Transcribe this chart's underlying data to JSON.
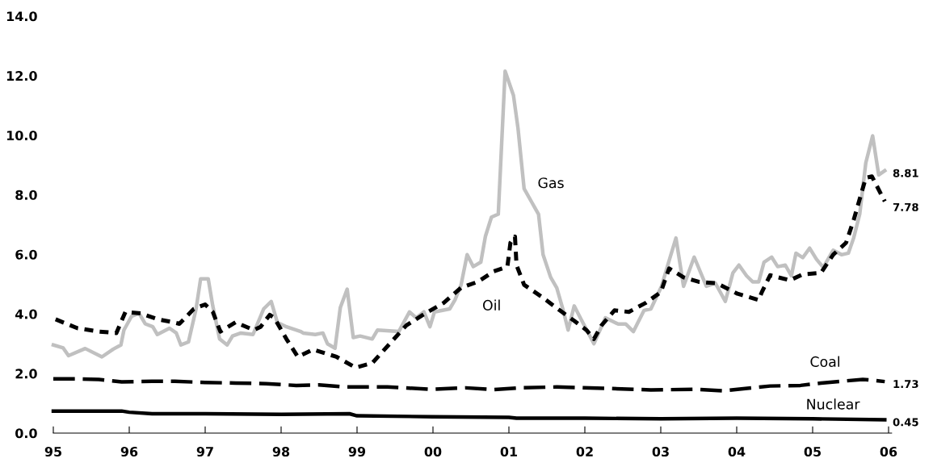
{
  "chart_data": {
    "type": "line",
    "xlim": [
      1995,
      2006
    ],
    "xticks": [
      {
        "value": 1995,
        "label": "95"
      },
      {
        "value": 1996,
        "label": "96"
      },
      {
        "value": 1997,
        "label": "97"
      },
      {
        "value": 1998,
        "label": "98"
      },
      {
        "value": 1999,
        "label": "99"
      },
      {
        "value": 2000,
        "label": "00"
      },
      {
        "value": 2001,
        "label": "01"
      },
      {
        "value": 2002,
        "label": "02"
      },
      {
        "value": 2003,
        "label": "03"
      },
      {
        "value": 2004,
        "label": "04"
      },
      {
        "value": 2005,
        "label": "05"
      },
      {
        "value": 2006,
        "label": "06"
      }
    ],
    "ylim": [
      0,
      14
    ],
    "yticks": [
      {
        "value": 0,
        "label": "0.0"
      },
      {
        "value": 2,
        "label": "2.0"
      },
      {
        "value": 4,
        "label": "4.0"
      },
      {
        "value": 6,
        "label": "6.0"
      },
      {
        "value": 8,
        "label": "8.0"
      },
      {
        "value": 10,
        "label": "10.0"
      },
      {
        "value": 12,
        "label": "12.0"
      },
      {
        "value": 14,
        "label": "14.0"
      }
    ],
    "grid": false,
    "legend": false,
    "marker": "none",
    "series": [
      {
        "name": "Gas",
        "color": "#c0c0c0",
        "line_style": "solid",
        "x": [
          1995.0,
          1995.13,
          1995.2,
          1995.42,
          1995.64,
          1995.79,
          1995.89,
          1995.93,
          1996.03,
          1996.13,
          1996.21,
          1996.31,
          1996.37,
          1996.53,
          1996.62,
          1996.68,
          1996.78,
          1996.88,
          1996.94,
          1997.04,
          1997.1,
          1997.19,
          1997.29,
          1997.36,
          1997.47,
          1997.63,
          1997.77,
          1997.87,
          1997.95,
          1998.07,
          1998.26,
          1998.29,
          1998.45,
          1998.55,
          1998.61,
          1998.71,
          1998.78,
          1998.87,
          1998.95,
          1999.04,
          1999.2,
          1999.27,
          1999.55,
          1999.69,
          1999.78,
          1999.88,
          1999.96,
          2000.02,
          2000.22,
          2000.29,
          2000.37,
          2000.45,
          2000.53,
          2000.63,
          2000.69,
          2000.77,
          2000.86,
          2000.95,
          2001.06,
          2001.12,
          2001.2,
          2001.31,
          2001.39,
          2001.45,
          2001.55,
          2001.63,
          2001.71,
          2001.78,
          2001.86,
          2001.94,
          2002.12,
          2002.27,
          2002.44,
          2002.54,
          2002.64,
          2002.78,
          2002.87,
          2003.01,
          2003.11,
          2003.2,
          2003.3,
          2003.44,
          2003.6,
          2003.72,
          2003.85,
          2003.95,
          2004.03,
          2004.13,
          2004.21,
          2004.29,
          2004.36,
          2004.46,
          2004.54,
          2004.64,
          2004.72,
          2004.78,
          2004.87,
          2004.96,
          2005.05,
          2005.14,
          2005.27,
          2005.38,
          2005.47,
          2005.54,
          2005.62,
          2005.7,
          2005.79,
          2005.87,
          2005.95
        ],
        "values": [
          2.96,
          2.86,
          2.6,
          2.84,
          2.56,
          2.82,
          2.96,
          3.46,
          3.92,
          4.02,
          3.67,
          3.57,
          3.31,
          3.52,
          3.36,
          2.96,
          3.06,
          4.17,
          5.18,
          5.18,
          4.27,
          3.16,
          2.96,
          3.26,
          3.36,
          3.31,
          4.17,
          4.42,
          3.72,
          3.57,
          3.41,
          3.36,
          3.31,
          3.36,
          3.0,
          2.85,
          4.22,
          4.83,
          3.21,
          3.26,
          3.16,
          3.46,
          3.41,
          4.07,
          3.87,
          4.07,
          3.57,
          4.07,
          4.17,
          4.47,
          4.98,
          5.99,
          5.59,
          5.74,
          6.6,
          7.25,
          7.35,
          12.15,
          11.34,
          10.23,
          8.21,
          7.71,
          7.35,
          5.99,
          5.23,
          4.88,
          4.17,
          3.46,
          4.27,
          3.87,
          3.0,
          3.87,
          3.66,
          3.66,
          3.41,
          4.12,
          4.17,
          4.93,
          5.79,
          6.55,
          4.93,
          5.91,
          4.93,
          5.03,
          4.42,
          5.38,
          5.64,
          5.28,
          5.08,
          5.08,
          5.74,
          5.91,
          5.59,
          5.64,
          5.28,
          6.04,
          5.89,
          6.21,
          5.84,
          5.56,
          6.14,
          5.99,
          6.04,
          6.55,
          7.35,
          9.07,
          9.98,
          8.67,
          8.81
        ],
        "value_labels": [
          null,
          null,
          null,
          null,
          null,
          null,
          null,
          null,
          null,
          null,
          null,
          null,
          null,
          null,
          null,
          null,
          null,
          null,
          null,
          null,
          null,
          null,
          null,
          null,
          null,
          null,
          null,
          null,
          null,
          null,
          null,
          null,
          null,
          null,
          null,
          null,
          null,
          null,
          null,
          null,
          null,
          null,
          null,
          null,
          null,
          null,
          null,
          null,
          null,
          null,
          null,
          null,
          null,
          null,
          null,
          null,
          null,
          null,
          null,
          null,
          null,
          null,
          null,
          null,
          null,
          null,
          null,
          null,
          null,
          null,
          null,
          null,
          null,
          null,
          null,
          null,
          null,
          null,
          null,
          null,
          null,
          null,
          null,
          null,
          null,
          null,
          null,
          null,
          null,
          null,
          null,
          null,
          null,
          null,
          null,
          null,
          null,
          null,
          null,
          null,
          null,
          null,
          null,
          null,
          null,
          null,
          null,
          null,
          "8.81"
        ]
      },
      {
        "name": "Oil",
        "color": "#000000",
        "line_style": "dotted",
        "x": [
          1995.03,
          1995.32,
          1995.6,
          1995.83,
          1995.95,
          1996.15,
          1996.38,
          1996.58,
          1996.66,
          1996.85,
          1997.0,
          1997.1,
          1997.2,
          1997.4,
          1997.64,
          1997.73,
          1997.85,
          1997.91,
          1998.07,
          1998.22,
          1998.42,
          1998.73,
          1998.98,
          1999.2,
          1999.43,
          1999.65,
          1999.9,
          2000.14,
          2000.37,
          2000.59,
          2000.8,
          2000.98,
          2001.02,
          2001.08,
          2001.1,
          2001.2,
          2001.43,
          2001.67,
          2001.86,
          2002.02,
          2002.12,
          2002.22,
          2002.39,
          2002.58,
          2002.8,
          2003.0,
          2003.11,
          2003.3,
          2003.5,
          2003.74,
          2004.01,
          2004.29,
          2004.33,
          2004.44,
          2004.7,
          2004.87,
          2005.11,
          2005.27,
          2005.44,
          2005.54,
          2005.7,
          2005.78,
          2005.95
        ],
        "values": [
          3.82,
          3.52,
          3.41,
          3.36,
          4.07,
          4.02,
          3.82,
          3.72,
          3.67,
          4.17,
          4.32,
          4.07,
          3.41,
          3.72,
          3.46,
          3.57,
          3.97,
          3.87,
          3.16,
          2.56,
          2.81,
          2.56,
          2.2,
          2.35,
          3.0,
          3.62,
          4.02,
          4.37,
          4.88,
          5.08,
          5.43,
          5.59,
          6.39,
          6.6,
          5.64,
          4.98,
          4.58,
          4.12,
          3.77,
          3.46,
          3.16,
          3.62,
          4.12,
          4.07,
          4.37,
          4.73,
          5.53,
          5.23,
          5.08,
          5.03,
          4.68,
          4.47,
          4.73,
          5.3,
          5.13,
          5.33,
          5.38,
          5.99,
          6.39,
          7.15,
          8.57,
          8.62,
          7.78
        ],
        "value_labels": [
          null,
          null,
          null,
          null,
          null,
          null,
          null,
          null,
          null,
          null,
          null,
          null,
          null,
          null,
          null,
          null,
          null,
          null,
          null,
          null,
          null,
          null,
          null,
          null,
          null,
          null,
          null,
          null,
          null,
          null,
          null,
          null,
          null,
          null,
          null,
          null,
          null,
          null,
          null,
          null,
          null,
          null,
          null,
          null,
          null,
          null,
          null,
          null,
          null,
          null,
          null,
          null,
          null,
          null,
          null,
          null,
          null,
          null,
          null,
          null,
          null,
          null,
          "7.78"
        ]
      },
      {
        "name": "Coal",
        "color": "#000000",
        "line_style": "dashed",
        "x": [
          1995.0,
          1995.3,
          1995.6,
          1995.9,
          1996.3,
          1996.6,
          1997.0,
          1997.4,
          1997.8,
          1998.2,
          1998.5,
          1998.84,
          1999.4,
          1999.98,
          2000.43,
          2000.8,
          2001.14,
          2001.63,
          2002.3,
          2002.87,
          2003.46,
          2003.82,
          2004.01,
          2004.44,
          2004.84,
          2005.11,
          2005.42,
          2005.66,
          2005.76,
          2005.95
        ],
        "values": [
          1.82,
          1.82,
          1.8,
          1.72,
          1.74,
          1.74,
          1.7,
          1.68,
          1.66,
          1.6,
          1.62,
          1.55,
          1.55,
          1.47,
          1.52,
          1.46,
          1.52,
          1.55,
          1.5,
          1.45,
          1.47,
          1.42,
          1.47,
          1.58,
          1.6,
          1.68,
          1.75,
          1.8,
          1.78,
          1.73
        ],
        "value_labels": [
          null,
          null,
          null,
          null,
          null,
          null,
          null,
          null,
          null,
          null,
          null,
          null,
          null,
          null,
          null,
          null,
          null,
          null,
          null,
          null,
          null,
          null,
          null,
          null,
          null,
          null,
          null,
          null,
          null,
          "1.73"
        ]
      },
      {
        "name": "Nuclear",
        "color": "#000000",
        "line_style": "solid",
        "x": [
          1995.0,
          1995.9,
          1996.0,
          1996.3,
          1997.0,
          1998.0,
          1998.9,
          1999.0,
          2000.0,
          2001.0,
          2001.1,
          2002.0,
          2003.0,
          2004.0,
          2005.0,
          2005.95
        ],
        "values": [
          0.74,
          0.74,
          0.7,
          0.65,
          0.65,
          0.63,
          0.65,
          0.58,
          0.55,
          0.53,
          0.5,
          0.5,
          0.48,
          0.5,
          0.48,
          0.45
        ],
        "value_labels": [
          null,
          null,
          null,
          null,
          null,
          null,
          null,
          null,
          null,
          null,
          null,
          null,
          null,
          null,
          null,
          "0.45"
        ]
      }
    ]
  }
}
